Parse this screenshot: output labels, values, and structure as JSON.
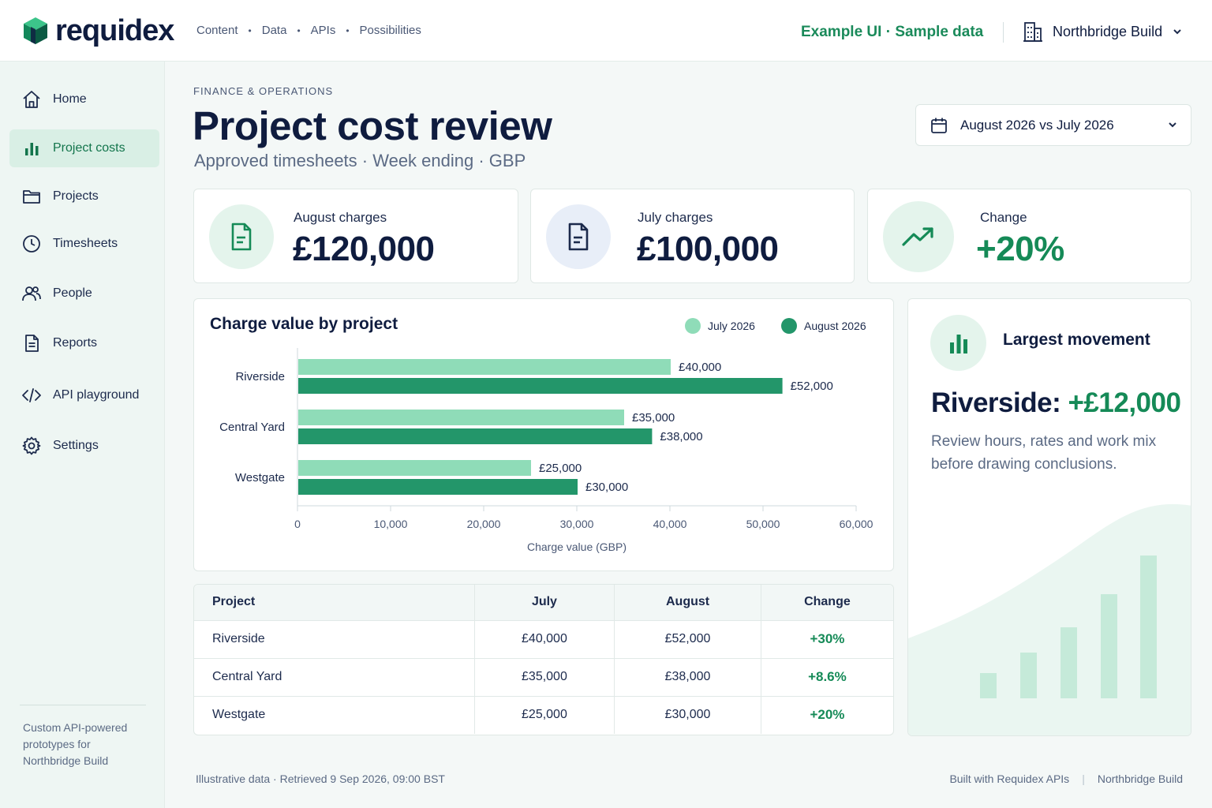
{
  "brand": {
    "name": "requidex"
  },
  "topnav": {
    "items": [
      "Content",
      "Data",
      "APIs",
      "Possibilities"
    ]
  },
  "header": {
    "example_tag": "Example UI · Sample data",
    "org_name": "Northbridge Build"
  },
  "sidebar": {
    "items": [
      {
        "label": "Home",
        "icon": "home-icon",
        "active": false
      },
      {
        "label": "Project costs",
        "icon": "bar-chart-icon",
        "active": true
      },
      {
        "label": "Projects",
        "icon": "folder-icon",
        "active": false
      },
      {
        "label": "Timesheets",
        "icon": "clock-icon",
        "active": false
      },
      {
        "label": "People",
        "icon": "people-icon",
        "active": false
      },
      {
        "label": "Reports",
        "icon": "document-icon",
        "active": false
      },
      {
        "label": "API playground",
        "icon": "code-icon",
        "active": false
      },
      {
        "label": "Settings",
        "icon": "gear-icon",
        "active": false
      }
    ],
    "footer": "Custom API-powered prototypes for Northbridge Build"
  },
  "page": {
    "eyebrow": "FINANCE & OPERATIONS",
    "title": "Project cost review",
    "subtitle": "Approved timesheets · Week ending · GBP",
    "period": "August 2026 vs July 2026"
  },
  "kpis": [
    {
      "label": "August charges",
      "value": "£120,000",
      "icon": "document-icon"
    },
    {
      "label": "July charges",
      "value": "£100,000",
      "icon": "document-icon"
    },
    {
      "label": "Change",
      "value": "+20%",
      "icon": "trend-up-icon"
    }
  ],
  "chart_data": {
    "type": "bar",
    "orientation": "horizontal",
    "title": "Charge value by project",
    "xlabel": "Charge value (GBP)",
    "ylabel": "",
    "categories": [
      "Riverside",
      "Central Yard",
      "Westgate"
    ],
    "series": [
      {
        "name": "July 2026",
        "values": [
          40000,
          35000,
          25000
        ],
        "labels": [
          "£40,000",
          "£35,000",
          "£25,000"
        ],
        "color": "#8fdcb8"
      },
      {
        "name": "August 2026",
        "values": [
          52000,
          38000,
          30000
        ],
        "labels": [
          "£52,000",
          "£38,000",
          "£30,000"
        ],
        "color": "#23966a"
      }
    ],
    "xlim": [
      0,
      60000
    ],
    "xticks": [
      0,
      10000,
      20000,
      30000,
      40000,
      50000,
      60000
    ],
    "xtick_labels": [
      "0",
      "10,000",
      "20,000",
      "30,000",
      "40,000",
      "50,000",
      "60,000"
    ],
    "legend": "top-right",
    "grid": false
  },
  "insight": {
    "title": "Largest movement",
    "head_project": "Riverside:",
    "head_value": "+£12,000",
    "body": "Review hours, rates and work mix before drawing conclusions."
  },
  "table": {
    "headers": [
      "Project",
      "July",
      "August",
      "Change"
    ],
    "rows": [
      [
        "Riverside",
        "£40,000",
        "£52,000",
        "+30%"
      ],
      [
        "Central Yard",
        "£35,000",
        "£38,000",
        "+8.6%"
      ],
      [
        "Westgate",
        "£25,000",
        "£30,000",
        "+20%"
      ]
    ]
  },
  "footer": {
    "left": "Illustrative data · Retrieved 9 Sep 2026, 09:00 BST",
    "right": [
      "Built with Requidex APIs",
      "Northbridge Build"
    ],
    "sep": "|"
  },
  "colors": {
    "accent": "#158a57",
    "accent_light": "#8fdcb8",
    "navy": "#0f1c3f"
  }
}
